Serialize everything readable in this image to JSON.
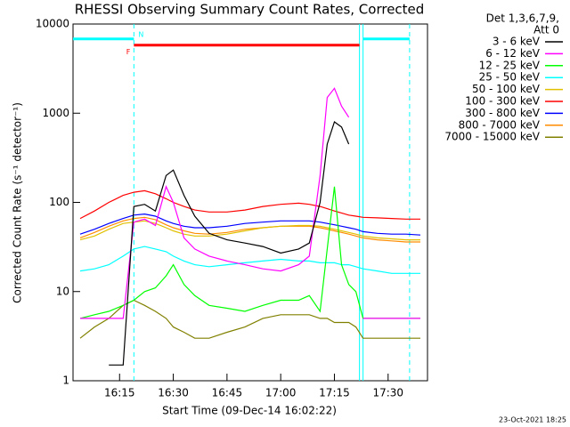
{
  "chart_data": {
    "type": "line",
    "title": "RHESSI Observing Summary Count Rates, Corrected",
    "y_label": "Corrected Count Rate (s⁻¹ detector⁻¹)",
    "x_label": "Start Time (09-Dec-14 16:02:22)",
    "legend_header": [
      "Det 1,3,6,7,9,",
      "Att 0"
    ],
    "timestamp": "23-Oct-2021 18:25",
    "log_y": true,
    "ylim": [
      1,
      10000
    ],
    "yticks": [
      1,
      10,
      100,
      1000,
      10000
    ],
    "xlim": [
      "16:02",
      "17:41"
    ],
    "xticks": [
      "16:15",
      "16:30",
      "16:45",
      "17:00",
      "17:15",
      "17:30"
    ],
    "legend": "right",
    "x": [
      "16:04",
      "16:08",
      "16:12",
      "16:16",
      "16:19",
      "16:22",
      "16:25",
      "16:28",
      "16:30",
      "16:33",
      "16:36",
      "16:40",
      "16:45",
      "16:50",
      "16:55",
      "17:00",
      "17:05",
      "17:08",
      "17:11",
      "17:13",
      "17:15",
      "17:17",
      "17:19",
      "17:21",
      "17:23",
      "17:27",
      "17:31",
      "17:35",
      "17:39"
    ],
    "series": [
      {
        "name": "3 - 6 keV",
        "color": "#000000",
        "values": [
          null,
          null,
          1.5,
          1.5,
          90,
          95,
          80,
          200,
          230,
          120,
          70,
          45,
          38,
          35,
          32,
          27,
          30,
          35,
          100,
          450,
          800,
          700,
          450,
          null,
          null,
          null,
          null,
          null,
          null
        ]
      },
      {
        "name": "6 - 12 keV",
        "color": "#ff00ff",
        "values": [
          5,
          5,
          5,
          5,
          60,
          65,
          55,
          150,
          100,
          40,
          30,
          25,
          22,
          20,
          18,
          17,
          20,
          25,
          200,
          1500,
          1900,
          1200,
          900,
          null,
          5,
          5,
          5,
          5,
          5
        ]
      },
      {
        "name": "12 - 25 keV",
        "color": "#00ff00",
        "values": [
          5,
          5.5,
          6,
          7,
          8,
          10,
          11,
          15,
          20,
          12,
          9,
          7,
          6.5,
          6,
          7,
          8,
          8,
          9,
          6,
          30,
          150,
          20,
          12,
          10,
          5,
          5,
          5,
          5,
          5
        ]
      },
      {
        "name": "25 - 50 keV",
        "color": "#00ffff",
        "values": [
          17,
          18,
          20,
          25,
          30,
          32,
          30,
          28,
          25,
          22,
          20,
          19,
          20,
          21,
          22,
          23,
          22,
          22,
          21,
          21,
          21,
          20,
          20,
          19,
          18,
          17,
          16,
          16,
          16
        ]
      },
      {
        "name": "50 - 100 keV",
        "color": "#e0c000",
        "values": [
          38,
          42,
          50,
          58,
          60,
          62,
          58,
          52,
          48,
          44,
          42,
          42,
          44,
          48,
          52,
          54,
          55,
          55,
          54,
          52,
          50,
          48,
          46,
          44,
          42,
          40,
          39,
          38,
          38
        ]
      },
      {
        "name": "100 - 300 keV",
        "color": "#ff0000",
        "values": [
          66,
          80,
          100,
          120,
          130,
          135,
          125,
          110,
          100,
          90,
          82,
          78,
          78,
          82,
          90,
          95,
          98,
          95,
          90,
          85,
          80,
          76,
          72,
          70,
          68,
          67,
          66,
          65,
          65
        ]
      },
      {
        "name": "300 - 800 keV",
        "color": "#0000ff",
        "values": [
          44,
          50,
          58,
          66,
          72,
          74,
          70,
          62,
          58,
          54,
          52,
          52,
          54,
          58,
          60,
          62,
          62,
          62,
          60,
          58,
          56,
          54,
          52,
          50,
          47,
          45,
          44,
          44,
          43
        ]
      },
      {
        "name": "800 - 7000 keV",
        "color": "#ff8c00",
        "values": [
          40,
          46,
          54,
          62,
          66,
          68,
          64,
          56,
          52,
          48,
          45,
          44,
          46,
          50,
          52,
          54,
          54,
          54,
          52,
          50,
          48,
          46,
          44,
          42,
          40,
          38,
          37,
          36,
          36
        ]
      },
      {
        "name": "7000 - 15000 keV",
        "color": "#808000",
        "values": [
          3,
          4,
          5,
          7,
          8,
          7,
          6,
          5,
          4,
          3.5,
          3,
          3,
          3.5,
          4,
          5,
          5.5,
          5.5,
          5.5,
          5,
          5,
          4.5,
          4.5,
          4.5,
          4,
          3,
          3,
          3,
          3,
          3
        ]
      }
    ],
    "state_bars": [
      {
        "x": [
          "16:02",
          "16:19"
        ],
        "y": 6800,
        "color": "#00ffff"
      },
      {
        "x": [
          "16:19",
          "17:22"
        ],
        "y": 5800,
        "color": "#ff0000",
        "label": "F"
      },
      {
        "x": [
          "17:23",
          "17:36"
        ],
        "y": 6800,
        "color": "#00ffff"
      }
    ],
    "vlines": [
      {
        "x": "16:19",
        "dashed": true,
        "label": "N"
      },
      {
        "x": "17:22",
        "dashed": false
      },
      {
        "x": "17:23",
        "dashed": false
      },
      {
        "x": "17:36",
        "dashed": true
      }
    ]
  }
}
